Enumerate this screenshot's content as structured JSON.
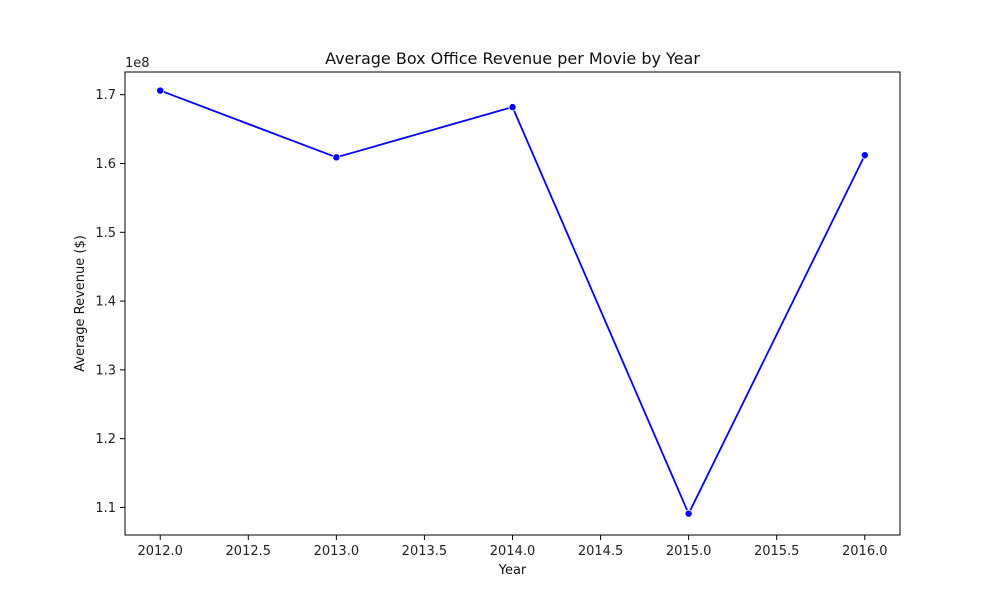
{
  "chart_data": {
    "type": "line",
    "title": "Average Box Office Revenue per Movie by Year",
    "xlabel": "Year",
    "ylabel": "Average Revenue ($)",
    "offset_label": "1e8",
    "x": [
      2012,
      2013,
      2014,
      2015,
      2016
    ],
    "series": [
      {
        "values": [
          170600000,
          160900000,
          168200000,
          109100000,
          161200000
        ]
      }
    ],
    "xlim": [
      2011.8,
      2016.2
    ],
    "ylim": [
      106000000,
      173300000
    ],
    "xticks": [
      2012.0,
      2012.5,
      2013.0,
      2013.5,
      2014.0,
      2014.5,
      2015.0,
      2015.5,
      2016.0
    ],
    "xtick_labels": [
      "2012.0",
      "2012.5",
      "2013.0",
      "2013.5",
      "2014.0",
      "2014.5",
      "2015.0",
      "2015.5",
      "2016.0"
    ],
    "yticks": [
      110000000,
      120000000,
      130000000,
      140000000,
      150000000,
      160000000,
      170000000
    ],
    "ytick_labels": [
      "1.1",
      "1.2",
      "1.3",
      "1.4",
      "1.5",
      "1.6",
      "1.7"
    ],
    "line_color": "#0000ff",
    "marker_color": "#0000ff",
    "grid": false,
    "legend": "none"
  }
}
